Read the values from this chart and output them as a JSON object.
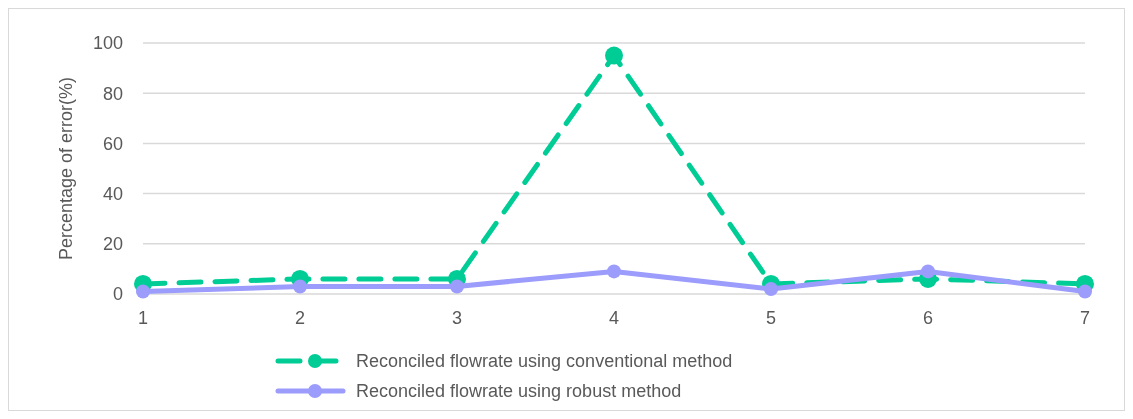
{
  "chart_data": {
    "type": "line",
    "ylabel": "Percentage of error(%)",
    "categories": [
      "1",
      "2",
      "3",
      "4",
      "5",
      "6",
      "7"
    ],
    "series": [
      {
        "name": "Reconciled flowrate using conventional method",
        "color": "#00cc96",
        "line_style": "dashed",
        "values": [
          4,
          6,
          6,
          95,
          4,
          6,
          4
        ]
      },
      {
        "name": "Reconciled flowrate using robust method",
        "color": "#9c9cfc",
        "line_style": "solid",
        "values": [
          1,
          3,
          3,
          9,
          2,
          9,
          1
        ]
      }
    ],
    "ylim": [
      0,
      100
    ],
    "yticks": [
      0,
      20,
      40,
      60,
      80,
      100
    ],
    "grid": "y",
    "legend": "bottom",
    "marker": "circle"
  }
}
